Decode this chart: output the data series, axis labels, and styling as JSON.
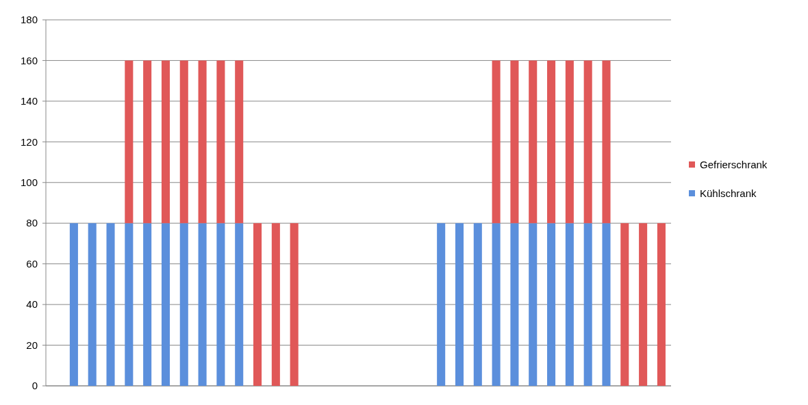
{
  "chart_data": {
    "type": "bar",
    "stacked": true,
    "categories": [
      null,
      null,
      null,
      null,
      null,
      null,
      null,
      null,
      null,
      null,
      null,
      null,
      null,
      null,
      null,
      null,
      null,
      null,
      null,
      null,
      null,
      null,
      null,
      null,
      null,
      null,
      null,
      null,
      null,
      null,
      null,
      null,
      null,
      null
    ],
    "series": [
      {
        "name": "Kühlschrank",
        "color": "#5b8fdc",
        "values": [
          null,
          80,
          80,
          80,
          80,
          80,
          80,
          80,
          80,
          80,
          80,
          null,
          null,
          null,
          null,
          null,
          null,
          null,
          null,
          null,
          null,
          80,
          80,
          80,
          80,
          80,
          80,
          80,
          80,
          80,
          80,
          null,
          null,
          null
        ]
      },
      {
        "name": "Gefrierschrank",
        "color": "#e05858",
        "values": [
          null,
          null,
          null,
          null,
          80,
          80,
          80,
          80,
          80,
          80,
          80,
          80,
          80,
          80,
          null,
          null,
          null,
          null,
          null,
          null,
          null,
          null,
          null,
          null,
          80,
          80,
          80,
          80,
          80,
          80,
          80,
          80,
          80,
          80
        ]
      }
    ],
    "ylim": [
      0,
      180
    ],
    "yticks": [
      0,
      20,
      40,
      60,
      80,
      100,
      120,
      140,
      160,
      180
    ],
    "grid": "y",
    "legend": "right"
  }
}
